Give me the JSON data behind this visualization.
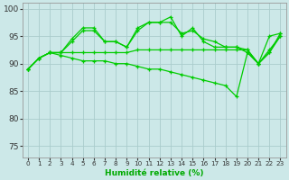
{
  "xlabel": "Humidité relative (%)",
  "bg_color": "#cce8e8",
  "grid_color": "#aacccc",
  "line_color": "#00cc00",
  "xlim": [
    -0.5,
    23.5
  ],
  "ylim": [
    73,
    101
  ],
  "yticks": [
    75,
    80,
    85,
    90,
    95,
    100
  ],
  "xtick_labels": [
    "0",
    "1",
    "2",
    "3",
    "4",
    "5",
    "6",
    "7",
    "8",
    "9",
    "10",
    "11",
    "12",
    "13",
    "14",
    "15",
    "16",
    "17",
    "18",
    "19",
    "20",
    "21",
    "22",
    "23"
  ],
  "s1": [
    89,
    91,
    92,
    92,
    94.5,
    96.5,
    96.5,
    94,
    94,
    93,
    96.5,
    97.5,
    97.5,
    98.5,
    95,
    96.5,
    94,
    93,
    93,
    93,
    92,
    90,
    95,
    95.5
  ],
  "s2": [
    89,
    91,
    92,
    92,
    94,
    96,
    96,
    94,
    94,
    93,
    96,
    97.5,
    97.5,
    97.5,
    95.5,
    96,
    94.5,
    94,
    93,
    93,
    92.5,
    90,
    92,
    95.5
  ],
  "s3": [
    89,
    91,
    92,
    92,
    92,
    92,
    92,
    92,
    92,
    92,
    92.5,
    92.5,
    92.5,
    92.5,
    92.5,
    92.5,
    92.5,
    92.5,
    92.5,
    92.5,
    92.5,
    90,
    92.5,
    95
  ],
  "s4": [
    89,
    91,
    92,
    91.5,
    91,
    90.5,
    90.5,
    90.5,
    90,
    90,
    89.5,
    89,
    89,
    88.5,
    88,
    87.5,
    87,
    86.5,
    86,
    84,
    92,
    90,
    92,
    95
  ]
}
